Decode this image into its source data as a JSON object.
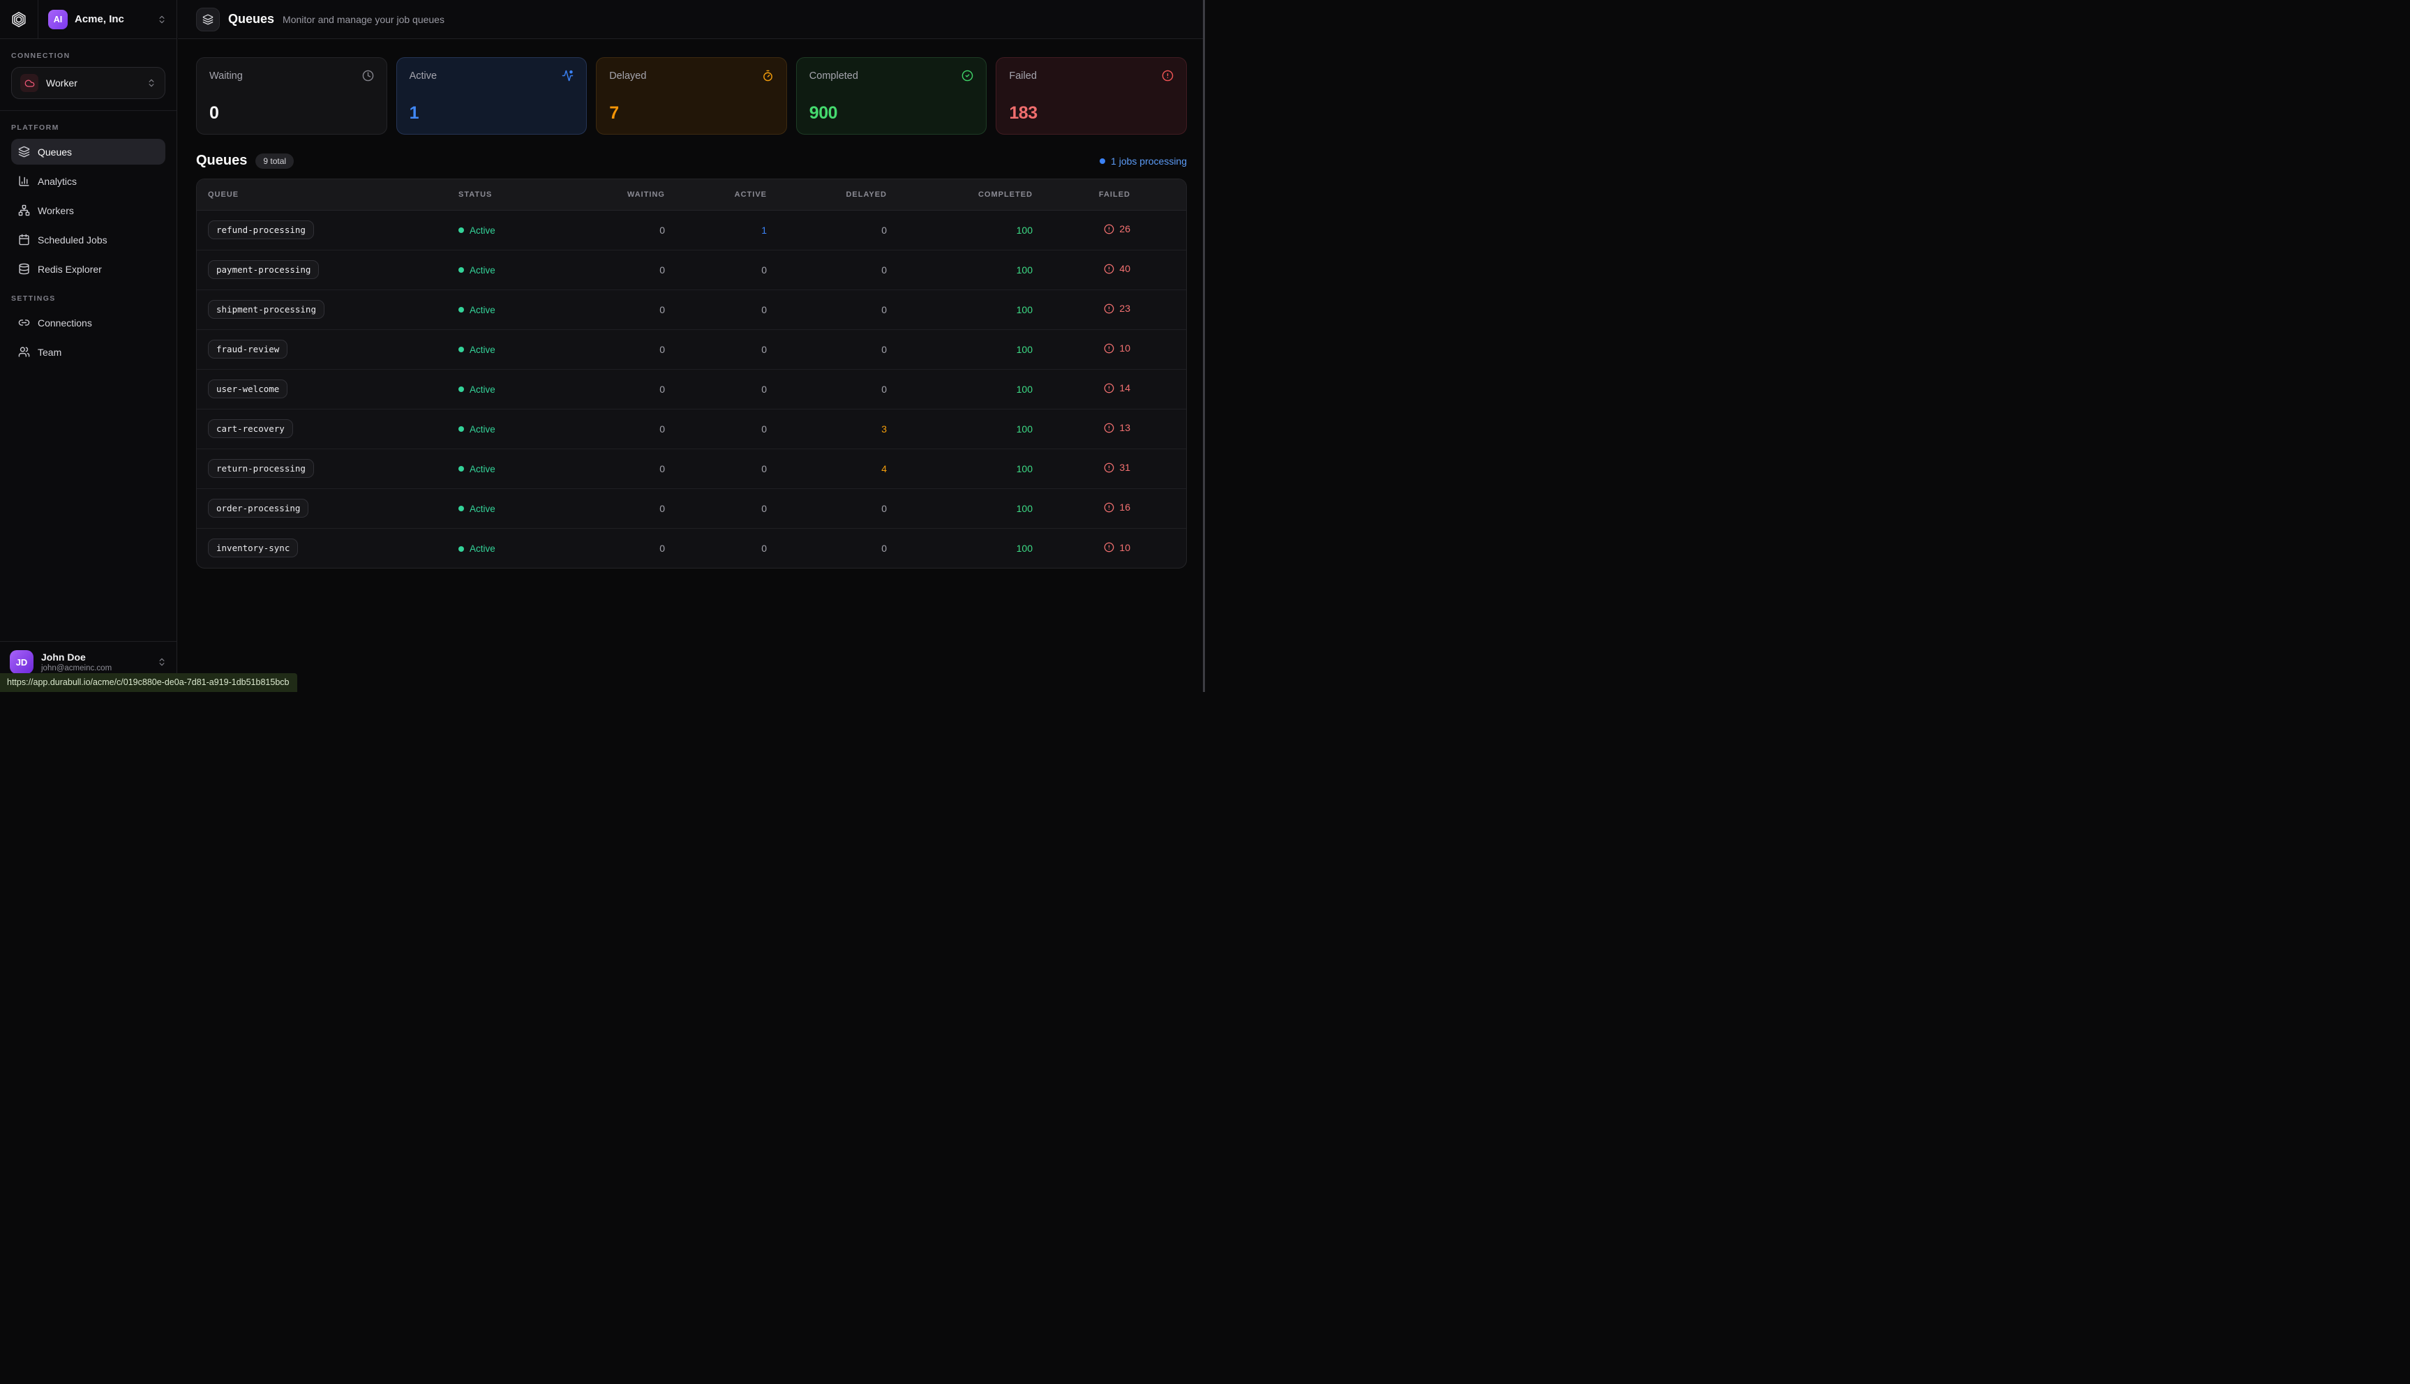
{
  "brand": {
    "org_initials": "AI",
    "org_name": "Acme, Inc"
  },
  "sidebar": {
    "connection_label": "CONNECTION",
    "connection": {
      "name": "Worker",
      "icon": "cloud"
    },
    "platform_label": "PLATFORM",
    "platform_items": [
      {
        "label": "Queues",
        "icon": "layers",
        "active": true
      },
      {
        "label": "Analytics",
        "icon": "chart",
        "active": false
      },
      {
        "label": "Workers",
        "icon": "network",
        "active": false
      },
      {
        "label": "Scheduled Jobs",
        "icon": "calendar",
        "active": false
      },
      {
        "label": "Redis Explorer",
        "icon": "database",
        "active": false
      }
    ],
    "settings_label": "SETTINGS",
    "settings_items": [
      {
        "label": "Connections",
        "icon": "link",
        "active": false
      },
      {
        "label": "Team",
        "icon": "users",
        "active": false
      }
    ],
    "user": {
      "initials": "JD",
      "name": "John Doe",
      "email": "john@acmeinc.com"
    }
  },
  "topbar": {
    "title": "Queues",
    "subtitle": "Monitor and manage your job queues",
    "icon": "layers"
  },
  "stats": [
    {
      "label": "Waiting",
      "value": "0",
      "variant": "neutral",
      "icon": "clock"
    },
    {
      "label": "Active",
      "value": "1",
      "variant": "blue",
      "icon": "activity"
    },
    {
      "label": "Delayed",
      "value": "7",
      "variant": "orange",
      "icon": "timer"
    },
    {
      "label": "Completed",
      "value": "900",
      "variant": "green",
      "icon": "check-circle"
    },
    {
      "label": "Failed",
      "value": "183",
      "variant": "red",
      "icon": "alert-circle"
    }
  ],
  "queues": {
    "title": "Queues",
    "badge": "9 total",
    "processing_note": "1 jobs processing",
    "columns": [
      "QUEUE",
      "STATUS",
      "WAITING",
      "ACTIVE",
      "DELAYED",
      "COMPLETED",
      "FAILED"
    ],
    "rows": [
      {
        "name": "refund-processing",
        "status": "Active",
        "waiting": "0",
        "active": "1",
        "delayed": "0",
        "completed": "100",
        "failed": "26"
      },
      {
        "name": "payment-processing",
        "status": "Active",
        "waiting": "0",
        "active": "0",
        "delayed": "0",
        "completed": "100",
        "failed": "40"
      },
      {
        "name": "shipment-processing",
        "status": "Active",
        "waiting": "0",
        "active": "0",
        "delayed": "0",
        "completed": "100",
        "failed": "23"
      },
      {
        "name": "fraud-review",
        "status": "Active",
        "waiting": "0",
        "active": "0",
        "delayed": "0",
        "completed": "100",
        "failed": "10"
      },
      {
        "name": "user-welcome",
        "status": "Active",
        "waiting": "0",
        "active": "0",
        "delayed": "0",
        "completed": "100",
        "failed": "14"
      },
      {
        "name": "cart-recovery",
        "status": "Active",
        "waiting": "0",
        "active": "0",
        "delayed": "3",
        "completed": "100",
        "failed": "13"
      },
      {
        "name": "return-processing",
        "status": "Active",
        "waiting": "0",
        "active": "0",
        "delayed": "4",
        "completed": "100",
        "failed": "31"
      },
      {
        "name": "order-processing",
        "status": "Active",
        "waiting": "0",
        "active": "0",
        "delayed": "0",
        "completed": "100",
        "failed": "16"
      },
      {
        "name": "inventory-sync",
        "status": "Active",
        "waiting": "0",
        "active": "0",
        "delayed": "0",
        "completed": "100",
        "failed": "10"
      }
    ]
  },
  "statusbar": {
    "url": "https://app.durabull.io/acme/c/019c880e-de0a-7d81-a919-1db51b815bcb"
  },
  "colors": {
    "accent_blue": "#3b82f6",
    "status_green": "#34d399",
    "delayed_orange": "#f59e0b",
    "failed_red": "#f47171",
    "brand_purple": "#8b5cf6"
  }
}
